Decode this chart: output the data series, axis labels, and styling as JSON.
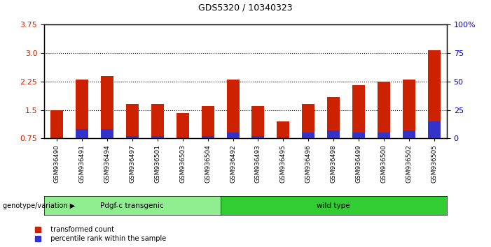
{
  "title": "GDS5320 / 10340323",
  "samples": [
    "GSM936490",
    "GSM936491",
    "GSM936494",
    "GSM936497",
    "GSM936501",
    "GSM936503",
    "GSM936504",
    "GSM936492",
    "GSM936493",
    "GSM936495",
    "GSM936496",
    "GSM936498",
    "GSM936499",
    "GSM936500",
    "GSM936502",
    "GSM936505"
  ],
  "red_values": [
    1.5,
    2.3,
    2.4,
    1.65,
    1.65,
    1.42,
    1.6,
    2.3,
    1.6,
    1.2,
    1.65,
    1.85,
    2.15,
    2.25,
    2.3,
    3.08
  ],
  "blue_percentiles": [
    1,
    8,
    8,
    2,
    2,
    1,
    2,
    5,
    2,
    1,
    5,
    7,
    5,
    5,
    7,
    15
  ],
  "group1_label": "Pdgf-c transgenic",
  "group1_count": 7,
  "group2_label": "wild type",
  "group2_count": 9,
  "group_label": "genotype/variation",
  "group1_color": "#90EE90",
  "group2_color": "#32CD32",
  "ylim_left": [
    0.75,
    3.75
  ],
  "yticks_left": [
    0.75,
    1.5,
    2.25,
    3.0,
    3.75
  ],
  "ylim_right": [
    0,
    100
  ],
  "yticks_right": [
    0,
    25,
    50,
    75,
    100
  ],
  "ytick_labels_right": [
    "0",
    "25",
    "50",
    "75",
    "100%"
  ],
  "bar_color_red": "#CC2200",
  "bar_color_blue": "#3333CC",
  "bar_width": 0.5,
  "background_color": "white",
  "legend_red": "transformed count",
  "legend_blue": "percentile rank within the sample",
  "tick_label_color_left": "#CC2200",
  "tick_label_color_right": "#0000CC"
}
